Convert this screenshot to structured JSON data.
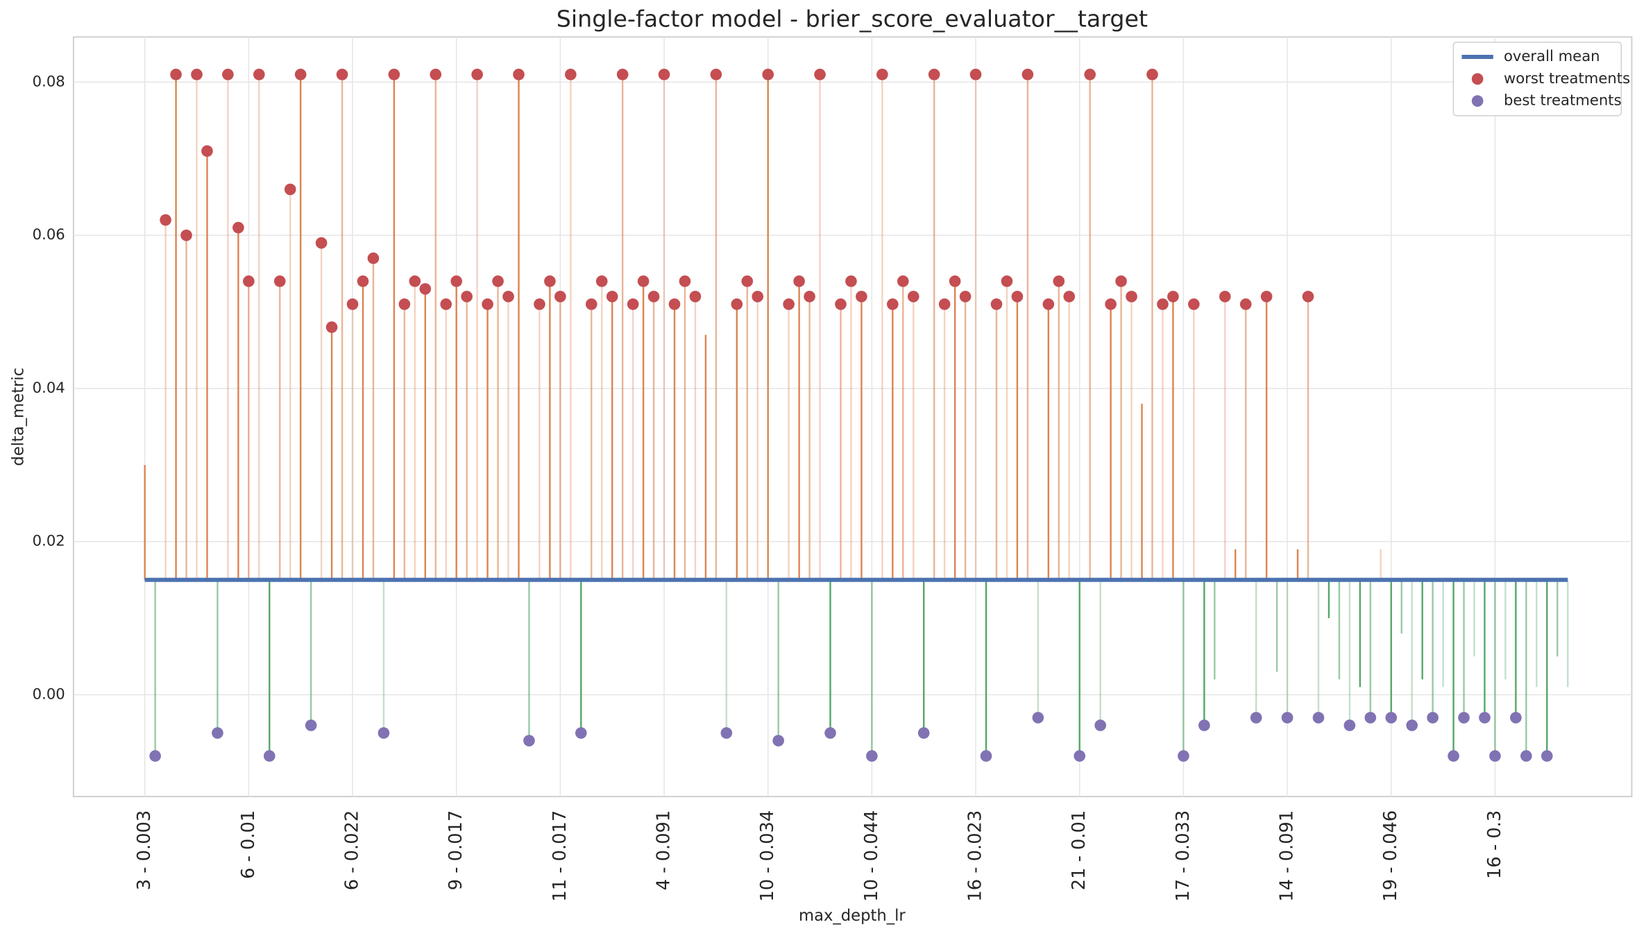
{
  "chart_data": {
    "type": "stem",
    "title": "Single-factor model - brier_score_evaluator__target",
    "x_label": "max_depth_lr",
    "y_label": "delta_metric",
    "categories": [
      "3 - 0.003",
      null,
      null,
      null,
      null,
      null,
      null,
      null,
      null,
      null,
      "6 - 0.01",
      null,
      null,
      null,
      null,
      null,
      null,
      null,
      null,
      null,
      "6 - 0.022",
      null,
      null,
      null,
      null,
      null,
      null,
      null,
      null,
      null,
      "9 - 0.017",
      null,
      null,
      null,
      null,
      null,
      null,
      null,
      null,
      null,
      "11 - 0.017",
      null,
      null,
      null,
      null,
      null,
      null,
      null,
      null,
      null,
      "4 - 0.091",
      null,
      null,
      null,
      null,
      null,
      null,
      null,
      null,
      null,
      "10 - 0.034",
      null,
      null,
      null,
      null,
      null,
      null,
      null,
      null,
      null,
      "10 - 0.044",
      null,
      null,
      null,
      null,
      null,
      null,
      null,
      null,
      null,
      "16 - 0.023",
      null,
      null,
      null,
      null,
      null,
      null,
      null,
      null,
      null,
      "21 - 0.01",
      null,
      null,
      null,
      null,
      null,
      null,
      null,
      null,
      null,
      "17 - 0.033",
      null,
      null,
      null,
      null,
      null,
      null,
      null,
      null,
      null,
      "14 - 0.091",
      null,
      null,
      null,
      null,
      null,
      null,
      null,
      null,
      null,
      "19 - 0.046",
      null,
      null,
      null,
      null,
      null,
      null,
      null,
      null,
      null,
      "16 - 0.3",
      null,
      null,
      null,
      null,
      null,
      null,
      null
    ],
    "values": [
      0.03,
      -0.008,
      0.062,
      0.081,
      0.06,
      0.081,
      0.071,
      -0.005,
      0.081,
      0.061,
      0.054,
      0.081,
      -0.008,
      0.054,
      0.066,
      0.081,
      -0.004,
      0.059,
      0.048,
      0.081,
      0.051,
      0.054,
      0.057,
      -0.005,
      0.081,
      0.051,
      0.054,
      0.053,
      0.081,
      0.051,
      0.054,
      0.052,
      0.081,
      0.051,
      0.054,
      0.052,
      0.081,
      -0.006,
      0.051,
      0.054,
      0.052,
      0.081,
      -0.005,
      0.051,
      0.054,
      0.052,
      0.081,
      0.051,
      0.054,
      0.052,
      0.081,
      0.051,
      0.054,
      0.052,
      0.047,
      0.081,
      -0.005,
      0.051,
      0.054,
      0.052,
      0.081,
      -0.006,
      0.051,
      0.054,
      0.052,
      0.081,
      -0.005,
      0.051,
      0.054,
      0.052,
      -0.008,
      0.081,
      0.051,
      0.054,
      0.052,
      -0.005,
      0.081,
      0.051,
      0.054,
      0.052,
      0.081,
      -0.008,
      0.051,
      0.054,
      0.052,
      0.081,
      -0.003,
      0.051,
      0.054,
      0.052,
      -0.008,
      0.081,
      -0.004,
      0.051,
      0.054,
      0.052,
      0.038,
      0.081,
      0.051,
      0.052,
      -0.008,
      0.051,
      -0.004,
      0.002,
      0.052,
      0.019,
      0.051,
      -0.003,
      0.052,
      0.003,
      -0.003,
      0.019,
      0.052,
      -0.003,
      0.01,
      0.002,
      -0.004,
      0.001,
      -0.003,
      0.019,
      -0.003,
      0.008,
      -0.004,
      0.002,
      -0.003,
      0.001,
      -0.008,
      -0.003,
      0.005,
      -0.003,
      -0.008,
      0.002,
      -0.003,
      -0.008,
      0.001,
      -0.008,
      0.005,
      0.001
    ],
    "above_color": "#dd8452",
    "below_color": "#55a868",
    "mean": {
      "name": "overall mean",
      "color": "#4c72b0",
      "value": 0.015
    },
    "series": [
      {
        "name": "worst treatments",
        "color": "#c44e52",
        "values": [
          null,
          null,
          0.062,
          0.081,
          0.06,
          0.081,
          0.071,
          null,
          0.081,
          0.061,
          0.054,
          0.081,
          null,
          0.054,
          0.066,
          0.081,
          null,
          0.059,
          0.048,
          0.081,
          0.051,
          0.054,
          0.057,
          null,
          0.081,
          0.051,
          0.054,
          0.053,
          0.081,
          0.051,
          0.054,
          0.052,
          0.081,
          0.051,
          0.054,
          0.052,
          0.081,
          null,
          0.051,
          0.054,
          0.052,
          0.081,
          null,
          0.051,
          0.054,
          0.052,
          0.081,
          0.051,
          0.054,
          0.052,
          0.081,
          0.051,
          0.054,
          0.052,
          null,
          0.081,
          null,
          0.051,
          0.054,
          0.052,
          0.081,
          null,
          0.051,
          0.054,
          0.052,
          0.081,
          null,
          0.051,
          0.054,
          0.052,
          null,
          0.081,
          0.051,
          0.054,
          0.052,
          null,
          0.081,
          0.051,
          0.054,
          0.052,
          0.081,
          null,
          0.051,
          0.054,
          0.052,
          0.081,
          null,
          0.051,
          0.054,
          0.052,
          null,
          0.081,
          null,
          0.051,
          0.054,
          0.052,
          null,
          0.081,
          0.051,
          0.052,
          null,
          0.051,
          null,
          null,
          0.052,
          null,
          0.051,
          null,
          0.052,
          null,
          null,
          null,
          0.052,
          null,
          null,
          null,
          null,
          null,
          null,
          null,
          null,
          null,
          null,
          null,
          null,
          null,
          null,
          null,
          null,
          null,
          null,
          null,
          null,
          null,
          null,
          null,
          null,
          null
        ]
      },
      {
        "name": "best treatments",
        "color": "#8172b3",
        "values": [
          null,
          -0.008,
          null,
          null,
          null,
          null,
          null,
          -0.005,
          null,
          null,
          null,
          null,
          -0.008,
          null,
          null,
          null,
          -0.004,
          null,
          null,
          null,
          null,
          null,
          null,
          -0.005,
          null,
          null,
          null,
          null,
          null,
          null,
          null,
          null,
          null,
          null,
          null,
          null,
          null,
          -0.006,
          null,
          null,
          null,
          null,
          -0.005,
          null,
          null,
          null,
          null,
          null,
          null,
          null,
          null,
          null,
          null,
          null,
          null,
          null,
          -0.005,
          null,
          null,
          null,
          null,
          -0.006,
          null,
          null,
          null,
          null,
          -0.005,
          null,
          null,
          null,
          -0.008,
          null,
          null,
          null,
          null,
          -0.005,
          null,
          null,
          null,
          null,
          null,
          -0.008,
          null,
          null,
          null,
          null,
          -0.003,
          null,
          null,
          null,
          -0.008,
          null,
          -0.004,
          null,
          null,
          null,
          null,
          null,
          null,
          null,
          -0.008,
          null,
          -0.004,
          null,
          null,
          null,
          null,
          -0.003,
          null,
          null,
          -0.003,
          null,
          null,
          -0.003,
          null,
          null,
          -0.004,
          null,
          -0.003,
          null,
          -0.003,
          null,
          -0.004,
          null,
          -0.003,
          null,
          -0.008,
          -0.003,
          null,
          -0.003,
          -0.008,
          null,
          -0.003,
          -0.008,
          null,
          -0.008,
          null,
          null
        ]
      }
    ],
    "ylim": [
      -0.0133,
      0.0859
    ],
    "yticks": [
      {
        "value": 0,
        "label": "0.00"
      },
      0.02,
      0.04,
      0.06,
      0.08
    ],
    "grid": true,
    "legend": "upper right"
  }
}
